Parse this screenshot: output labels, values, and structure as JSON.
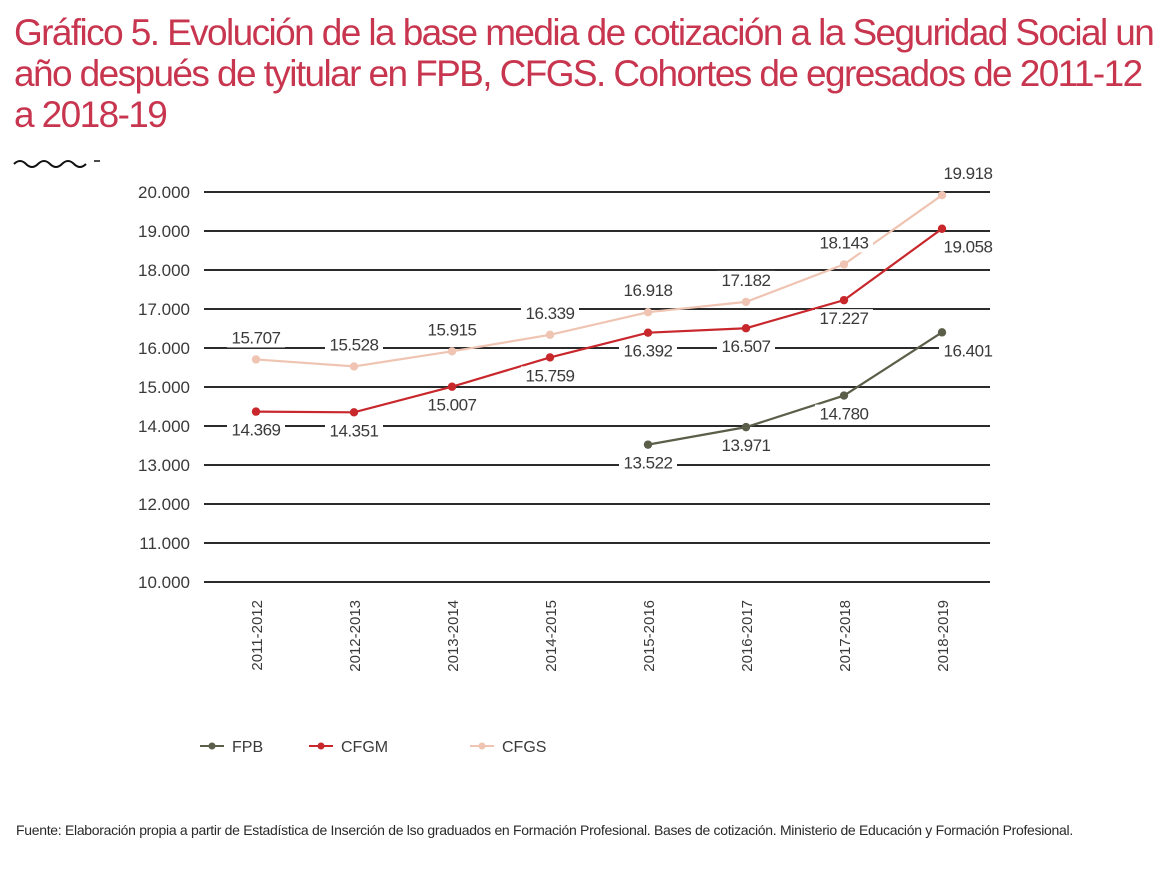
{
  "title": "Gráfico 5. Evolución de la base media de cotización a la Seguridad Social un año después de tyitular en FPB, CFGS. Cohortes de egresados de 2011-12 a 2018-19",
  "decoration": "squiggle-icon",
  "source": "Fuente: Elaboración propia a partir de Estadística de Inserción de lso graduados en Formación Profesional. Bases de cotización. Ministerio de Educación y Formación Profesional.",
  "chart_data": {
    "type": "line",
    "title": "Gráfico 5. Evolución de la base media de cotización a la Seguridad Social un año después de tyitular en FPB, CFGS. Cohortes de egresados de 2011-12 a 2018-19",
    "xlabel": "",
    "ylabel": "",
    "categories": [
      "2011-2012",
      "2012-2013",
      "2013-2014",
      "2014-2015",
      "2015-2016",
      "2016-2017",
      "2017-2018",
      "2018-2019"
    ],
    "ylim": [
      10000,
      20000
    ],
    "yticks": [
      10000,
      11000,
      12000,
      13000,
      14000,
      15000,
      16000,
      17000,
      18000,
      19000,
      20000
    ],
    "ytick_labels": [
      "10.000",
      "11.000",
      "12.000",
      "13.000",
      "14.000",
      "15.000",
      "16.000",
      "17.000",
      "18.000",
      "19.000",
      "20.000"
    ],
    "grid": true,
    "legend_position": "bottom-left",
    "series": [
      {
        "name": "FPB",
        "color": "#5b5e48",
        "values": [
          null,
          null,
          null,
          null,
          13522,
          13971,
          14780,
          16401
        ],
        "labels": [
          null,
          null,
          null,
          null,
          "13.522",
          "13.971",
          "14.780",
          "16.401"
        ],
        "label_position": [
          "",
          "",
          "",
          "",
          "below",
          "below",
          "below",
          "below"
        ]
      },
      {
        "name": "CFGM",
        "color": "#c8282c",
        "values": [
          14369,
          14351,
          15007,
          15759,
          16392,
          16507,
          17227,
          19058
        ],
        "labels": [
          "14.369",
          "14.351",
          "15.007",
          "15.759",
          "16.392",
          "16.507",
          "17.227",
          "19.058"
        ],
        "label_position": [
          "below",
          "below",
          "below",
          "below",
          "below",
          "below",
          "below",
          "below"
        ]
      },
      {
        "name": "CFGS",
        "color": "#efc4b2",
        "values": [
          15707,
          15528,
          15915,
          16339,
          16918,
          17182,
          18143,
          19918
        ],
        "labels": [
          "15.707",
          "15.528",
          "15.915",
          "16.339",
          "16.918",
          "17.182",
          "18.143",
          "19.918"
        ],
        "label_position": [
          "above",
          "above",
          "above",
          "above",
          "above",
          "above",
          "above",
          "above"
        ]
      }
    ]
  }
}
